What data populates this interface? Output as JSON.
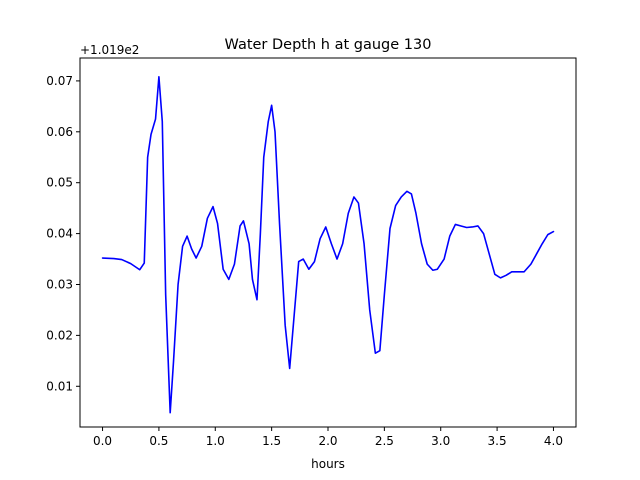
{
  "chart_data": {
    "type": "line",
    "title": "Water Depth h at gauge 130",
    "xlabel": "hours",
    "ylabel": "",
    "offset_label": "+1.019e2",
    "xlim": [
      -0.2,
      4.2
    ],
    "ylim": [
      0.002,
      0.0745
    ],
    "xticks": [
      0.0,
      0.5,
      1.0,
      1.5,
      2.0,
      2.5,
      3.0,
      3.5,
      4.0
    ],
    "xtick_labels": [
      "0.0",
      "0.5",
      "1.0",
      "1.5",
      "2.0",
      "2.5",
      "3.0",
      "3.5",
      "4.0"
    ],
    "yticks": [
      0.01,
      0.02,
      0.03,
      0.04,
      0.05,
      0.06,
      0.07
    ],
    "ytick_labels": [
      "0.01",
      "0.02",
      "0.03",
      "0.04",
      "0.05",
      "0.06",
      "0.07"
    ],
    "grid": false,
    "series": [
      {
        "color": "#0000ff",
        "x": [
          0.0,
          0.1,
          0.17,
          0.25,
          0.33,
          0.37,
          0.4,
          0.43,
          0.47,
          0.5,
          0.53,
          0.56,
          0.6,
          0.63,
          0.67,
          0.71,
          0.75,
          0.79,
          0.83,
          0.88,
          0.93,
          0.98,
          1.02,
          1.07,
          1.12,
          1.17,
          1.22,
          1.25,
          1.3,
          1.33,
          1.37,
          1.4,
          1.43,
          1.47,
          1.5,
          1.53,
          1.57,
          1.62,
          1.66,
          1.7,
          1.74,
          1.78,
          1.83,
          1.88,
          1.93,
          1.98,
          2.03,
          2.08,
          2.13,
          2.18,
          2.23,
          2.27,
          2.32,
          2.37,
          2.42,
          2.46,
          2.5,
          2.55,
          2.6,
          2.65,
          2.7,
          2.74,
          2.78,
          2.83,
          2.88,
          2.93,
          2.97,
          3.03,
          3.08,
          3.13,
          3.18,
          3.23,
          3.28,
          3.33,
          3.38,
          3.43,
          3.48,
          3.53,
          3.58,
          3.63,
          3.68,
          3.74,
          3.8,
          3.85,
          3.9,
          3.95,
          4.0
        ],
        "y": [
          0.0352,
          0.0351,
          0.0349,
          0.0341,
          0.0329,
          0.0342,
          0.055,
          0.0595,
          0.0625,
          0.0708,
          0.062,
          0.028,
          0.0048,
          0.015,
          0.03,
          0.0375,
          0.0395,
          0.037,
          0.0352,
          0.0375,
          0.043,
          0.0453,
          0.042,
          0.033,
          0.031,
          0.034,
          0.0415,
          0.0425,
          0.038,
          0.031,
          0.027,
          0.04,
          0.055,
          0.062,
          0.0652,
          0.06,
          0.042,
          0.022,
          0.0135,
          0.024,
          0.0345,
          0.035,
          0.033,
          0.0345,
          0.039,
          0.0413,
          0.038,
          0.035,
          0.038,
          0.044,
          0.0472,
          0.046,
          0.038,
          0.025,
          0.0165,
          0.017,
          0.028,
          0.041,
          0.0455,
          0.0472,
          0.0483,
          0.0478,
          0.044,
          0.038,
          0.034,
          0.0328,
          0.033,
          0.035,
          0.0395,
          0.0418,
          0.0415,
          0.0412,
          0.0413,
          0.0415,
          0.04,
          0.036,
          0.032,
          0.0313,
          0.0318,
          0.0325,
          0.0325,
          0.0325,
          0.034,
          0.036,
          0.038,
          0.0398,
          0.0404
        ]
      }
    ]
  }
}
